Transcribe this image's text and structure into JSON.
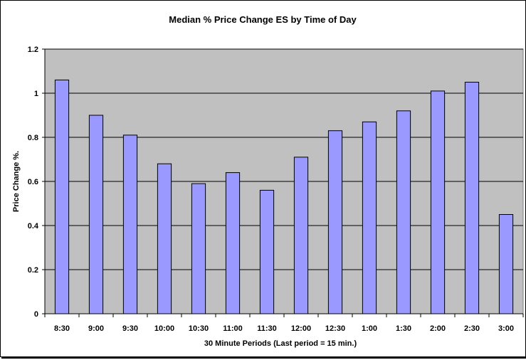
{
  "chart_data": {
    "type": "bar",
    "title": "Median % Price Change ES by Time of Day",
    "xlabel": "30 Minute Periods (Last period = 15 min.)",
    "ylabel": "Price Change %.",
    "categories": [
      "8:30",
      "9:00",
      "9:30",
      "10:00",
      "10:30",
      "11:00",
      "11:30",
      "12:00",
      "12:30",
      "1:00",
      "1:30",
      "2:00",
      "2:30",
      "3:00"
    ],
    "values": [
      1.06,
      0.9,
      0.81,
      0.68,
      0.59,
      0.64,
      0.56,
      0.71,
      0.83,
      0.87,
      0.92,
      1.01,
      1.05,
      0.45
    ],
    "ylim": [
      0,
      1.2
    ],
    "yticks": [
      "0",
      "0.2",
      "0.4",
      "0.6",
      "0.8",
      "1",
      "1.2"
    ],
    "grid": true,
    "colors": {
      "plot_background": "#c0c0c0",
      "bar_fill": "#9999ff",
      "bar_stroke": "#000000",
      "gridline": "#000000"
    }
  }
}
